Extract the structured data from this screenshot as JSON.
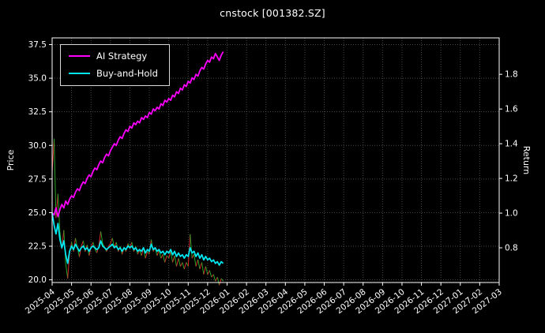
{
  "chart_data": {
    "type": "line",
    "title": "cnstock [001382.SZ]",
    "grid": true,
    "legend_position": "upper-left",
    "left_axis": {
      "label": "Price",
      "ticks": [
        20.0,
        22.5,
        25.0,
        27.5,
        30.0,
        32.5,
        35.0,
        37.5
      ],
      "range": [
        19.8,
        38.0
      ]
    },
    "right_axis": {
      "label": "Return",
      "ticks": [
        0.8,
        1.0,
        1.2,
        1.4,
        1.6,
        1.8
      ],
      "range": [
        0.6,
        2.01
      ]
    },
    "x_ticks": [
      "2025-04",
      "2025-05",
      "2025-06",
      "2025-07",
      "2025-08",
      "2025-09",
      "2025-10",
      "2025-11",
      "2025-12",
      "2026-01",
      "2026-02",
      "2026-03",
      "2026-04",
      "2026-05",
      "2026-06",
      "2026-07",
      "2026-08",
      "2026-09",
      "2026-10",
      "2026-11",
      "2026-12",
      "2027-01",
      "2027-02",
      "2027-03"
    ],
    "series": [
      {
        "name": "AI Strategy",
        "axis": "right",
        "color": "#ff00ff",
        "x_start": 0,
        "x_step": 0.1,
        "values": [
          1.0,
          0.99,
          1.03,
          0.98,
          1.02,
          1.05,
          1.03,
          1.07,
          1.05,
          1.08,
          1.1,
          1.09,
          1.12,
          1.14,
          1.13,
          1.16,
          1.18,
          1.17,
          1.2,
          1.22,
          1.21,
          1.24,
          1.26,
          1.25,
          1.28,
          1.3,
          1.29,
          1.32,
          1.34,
          1.33,
          1.36,
          1.38,
          1.4,
          1.39,
          1.42,
          1.44,
          1.43,
          1.46,
          1.48,
          1.47,
          1.5,
          1.49,
          1.52,
          1.51,
          1.53,
          1.52,
          1.55,
          1.54,
          1.56,
          1.55,
          1.58,
          1.57,
          1.6,
          1.59,
          1.61,
          1.6,
          1.63,
          1.62,
          1.65,
          1.64,
          1.66,
          1.65,
          1.68,
          1.67,
          1.7,
          1.69,
          1.72,
          1.71,
          1.74,
          1.73,
          1.76,
          1.75,
          1.78,
          1.77,
          1.8,
          1.79,
          1.82,
          1.84,
          1.83,
          1.86,
          1.88,
          1.87,
          1.9,
          1.89,
          1.92,
          1.9,
          1.88,
          1.91,
          1.93
        ]
      },
      {
        "name": "Buy-and-Hold",
        "axis": "right",
        "color": "#00e5ee",
        "x_start": 0,
        "x_step": 0.1,
        "values": [
          1.0,
          0.93,
          0.88,
          0.94,
          0.85,
          0.8,
          0.84,
          0.76,
          0.71,
          0.78,
          0.81,
          0.79,
          0.82,
          0.8,
          0.78,
          0.8,
          0.81,
          0.79,
          0.8,
          0.78,
          0.8,
          0.81,
          0.8,
          0.79,
          0.8,
          0.84,
          0.81,
          0.8,
          0.79,
          0.8,
          0.81,
          0.82,
          0.8,
          0.81,
          0.79,
          0.8,
          0.78,
          0.8,
          0.79,
          0.81,
          0.8,
          0.81,
          0.79,
          0.8,
          0.78,
          0.79,
          0.78,
          0.8,
          0.77,
          0.79,
          0.78,
          0.82,
          0.79,
          0.8,
          0.78,
          0.79,
          0.77,
          0.78,
          0.76,
          0.78,
          0.77,
          0.79,
          0.76,
          0.78,
          0.75,
          0.77,
          0.75,
          0.76,
          0.74,
          0.76,
          0.75,
          0.8,
          0.77,
          0.78,
          0.75,
          0.77,
          0.74,
          0.76,
          0.73,
          0.75,
          0.73,
          0.74,
          0.72,
          0.73,
          0.71,
          0.72,
          0.7,
          0.72,
          0.71
        ]
      },
      {
        "name": "Price",
        "axis": "left",
        "up_color": "#d92b2b",
        "down_color": "#28a428",
        "x_start": 0,
        "x_step": 0.1,
        "values": [
          28.0,
          30.5,
          24.6,
          26.4,
          23.6,
          22.3,
          23.7,
          21.2,
          20.1,
          22.0,
          22.8,
          22.1,
          23.1,
          22.4,
          21.7,
          22.5,
          22.9,
          22.1,
          22.6,
          21.8,
          22.4,
          22.8,
          22.3,
          22.0,
          22.5,
          23.6,
          22.7,
          22.4,
          22.1,
          22.5,
          22.7,
          23.1,
          22.4,
          22.8,
          22.1,
          22.5,
          21.9,
          22.4,
          22.1,
          22.7,
          22.4,
          22.8,
          22.1,
          22.5,
          21.9,
          22.2,
          21.8,
          22.4,
          21.6,
          22.1,
          21.9,
          23.0,
          22.1,
          22.4,
          21.8,
          22.2,
          21.6,
          21.9,
          21.3,
          21.8,
          21.6,
          22.1,
          21.3,
          21.8,
          21.0,
          21.6,
          21.0,
          21.3,
          20.8,
          21.3,
          21.0,
          23.4,
          21.6,
          21.9,
          21.0,
          21.5,
          20.8,
          21.3,
          20.4,
          21.0,
          20.4,
          20.7,
          20.2,
          20.4,
          19.9,
          20.2,
          19.6,
          20.1,
          19.9
        ]
      }
    ]
  }
}
